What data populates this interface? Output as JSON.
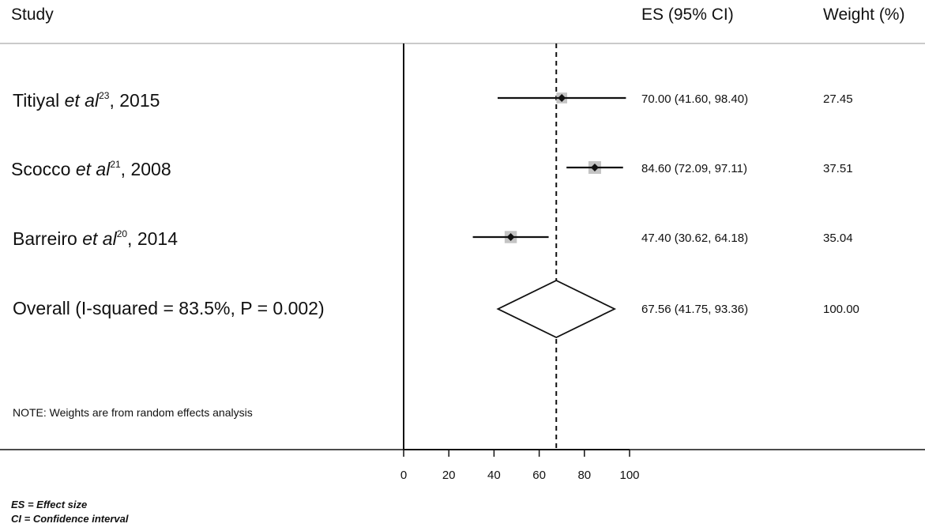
{
  "header": {
    "study": "Study",
    "es": "ES (95% CI)",
    "weight": "Weight (%)"
  },
  "chart_data": {
    "type": "forest",
    "effect_measure": "ES",
    "x_ticks": [
      0,
      20,
      40,
      60,
      80,
      100
    ],
    "xlim": [
      0,
      100
    ],
    "null_line": 0,
    "overall_line": 67.56,
    "studies": [
      {
        "author": "Titiyal",
        "etal": "et al",
        "ref": "23",
        "year": ", 2015",
        "es": 70.0,
        "lo": 41.6,
        "hi": 98.4,
        "es_text": "70.00 (41.60, 98.40)",
        "weight": "27.45"
      },
      {
        "author": "Scocco",
        "etal": "et al",
        "ref": "21",
        "year": ", 2008",
        "es": 84.6,
        "lo": 72.09,
        "hi": 97.11,
        "es_text": "84.60 (72.09, 97.11)",
        "weight": "37.51"
      },
      {
        "author": "Barreiro",
        "etal": "et al",
        "ref": "20",
        "year": ",  2014",
        "es": 47.4,
        "lo": 30.62,
        "hi": 64.18,
        "es_text": "47.40 (30.62, 64.18)",
        "weight": "35.04"
      }
    ],
    "overall": {
      "label": "Overall  (I-squared = 83.5%, P = 0.002)",
      "es": 67.56,
      "lo": 41.75,
      "hi": 93.36,
      "es_text": "67.56 (41.75, 93.36)",
      "weight": "100.00"
    },
    "note": "NOTE: Weights are from random effects analysis"
  },
  "footnotes": {
    "line1": "ES = Effect size",
    "line2": "CI = Confidence interval"
  }
}
